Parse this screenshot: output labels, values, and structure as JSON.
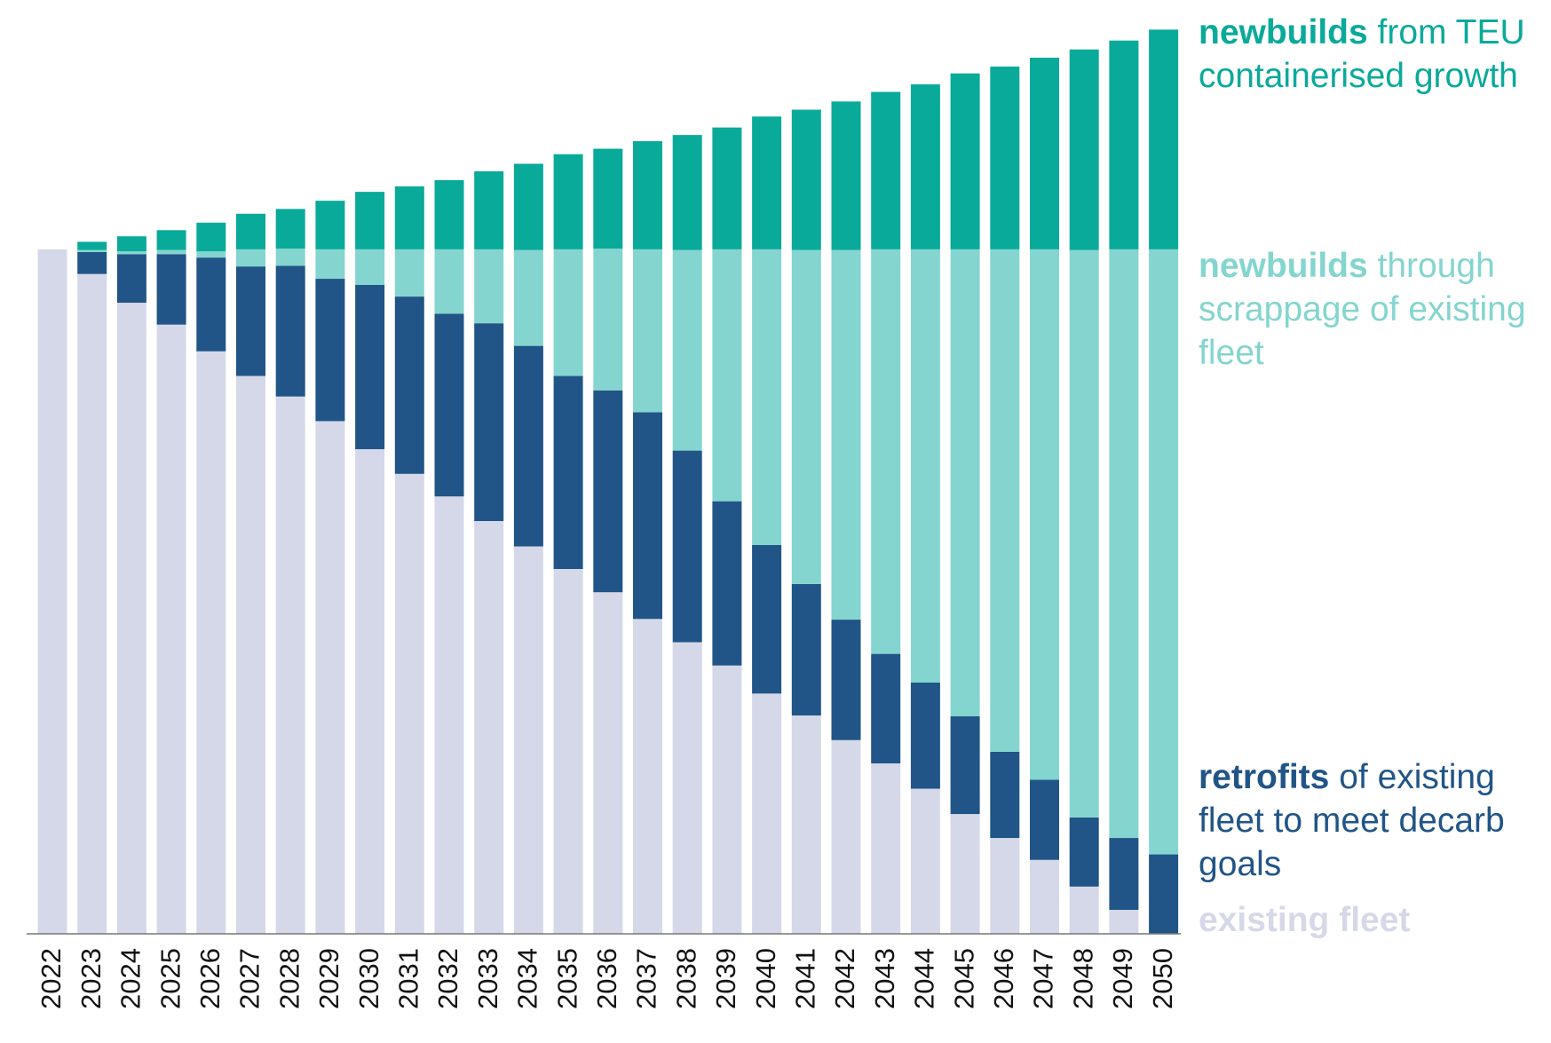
{
  "chart_data": {
    "type": "stacked_bar",
    "categories": [
      "2022",
      "2023",
      "2024",
      "2025",
      "2026",
      "2027",
      "2028",
      "2029",
      "2030",
      "2031",
      "2032",
      "2033",
      "2034",
      "2035",
      "2036",
      "2037",
      "2038",
      "2039",
      "2040",
      "2041",
      "2042",
      "2043",
      "2044",
      "2045",
      "2046",
      "2047",
      "2048",
      "2049",
      "2050"
    ],
    "ylim": [
      0,
      135
    ],
    "series": [
      {
        "name": [
          "existing fleet"
        ],
        "color": "#d5d8e8",
        "values": [
          100,
          96.4,
          92.2,
          89.0,
          85.1,
          81.5,
          78.5,
          74.9,
          70.8,
          67.2,
          63.9,
          60.3,
          56.6,
          53.3,
          49.9,
          46.0,
          42.6,
          39.2,
          35.1,
          31.9,
          28.3,
          24.9,
          21.2,
          17.5,
          14.0,
          10.8,
          6.9,
          3.5,
          0
        ]
      },
      {
        "name": [
          "retrofits",
          "of existing fleet to meet decarb goals"
        ],
        "color": "#215587",
        "values": [
          0,
          3.2,
          7.1,
          10.3,
          13.7,
          16.0,
          19.1,
          20.8,
          24.0,
          25.9,
          26.7,
          28.9,
          29.3,
          28.2,
          29.5,
          30.2,
          28.0,
          24.0,
          21.7,
          19.2,
          17.6,
          16.0,
          15.5,
          14.3,
          12.6,
          11.7,
          10.1,
          10.5,
          11.6
        ]
      },
      {
        "name": [
          "newbuilds",
          "through scrappage of existing fleet"
        ],
        "color": "#84d5cf",
        "values": [
          0,
          0.3,
          0.4,
          0.6,
          0.9,
          2.5,
          2.5,
          4.3,
          5.2,
          6.9,
          9.4,
          10.8,
          14.0,
          18.5,
          20.7,
          23.8,
          29.3,
          36.8,
          43.2,
          48.8,
          54.0,
          59.1,
          63.3,
          68.2,
          73.4,
          77.5,
          82.9,
          86.0,
          88.4
        ]
      },
      {
        "name": [
          "newbuilds",
          "from TEU containerised growth"
        ],
        "color": "#0aaa9a",
        "values": [
          0,
          1.2,
          2.2,
          2.9,
          4.2,
          5.2,
          5.8,
          7.1,
          8.4,
          9.2,
          10.1,
          11.4,
          12.6,
          13.9,
          14.6,
          15.8,
          16.8,
          17.8,
          19.4,
          20.5,
          21.7,
          23.0,
          24.1,
          25.7,
          26.7,
          28.0,
          29.3,
          30.5,
          32.1
        ]
      }
    ]
  }
}
